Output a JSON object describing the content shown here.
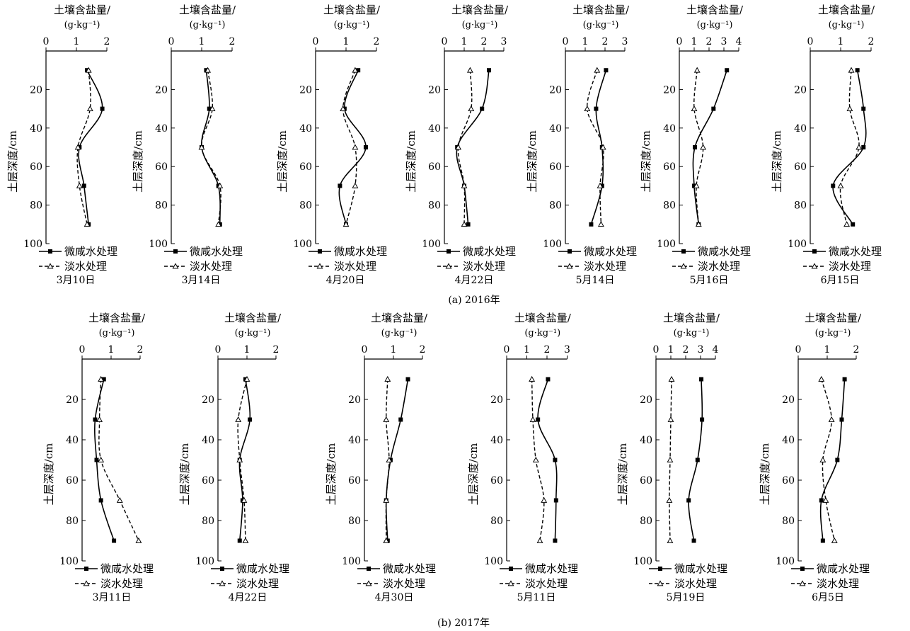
{
  "figure": {
    "caption_a": "(a) 2016年",
    "caption_b": "(b) 2017年",
    "xlabel_line1": "土壤含盐量/",
    "xlabel_line2": "(g·kg⁻¹)",
    "ylabel": "土层深度/cm",
    "legend_saline": "微咸水处理",
    "legend_fresh": "淡水处理"
  },
  "chart_data": [
    {
      "type": "line",
      "group": "2016",
      "title": "3月10日",
      "xlabel": "土壤含盐量/(g·kg⁻¹)",
      "ylabel": "土层深度/cm",
      "xlim": [
        0,
        2
      ],
      "xticks": [
        0,
        1,
        2
      ],
      "ylim": [
        0,
        100
      ],
      "yticks": [
        20,
        40,
        60,
        80,
        100
      ],
      "y": [
        10,
        30,
        50,
        70,
        90
      ],
      "series": [
        {
          "name": "微咸水处理",
          "marker": "square",
          "values": [
            1.35,
            1.85,
            1.1,
            1.25,
            1.4
          ]
        },
        {
          "name": "淡水处理",
          "marker": "triangle",
          "values": [
            1.4,
            1.45,
            1.05,
            1.1,
            1.35
          ]
        }
      ]
    },
    {
      "type": "line",
      "group": "2016",
      "title": "3月14日",
      "xlabel": "土壤含盐量/(g·kg⁻¹)",
      "ylabel": "土层深度/cm",
      "xlim": [
        0,
        2
      ],
      "xticks": [
        0,
        1,
        2
      ],
      "ylim": [
        0,
        100
      ],
      "yticks": [
        20,
        40,
        60,
        80,
        100
      ],
      "y": [
        10,
        30,
        50,
        70,
        90
      ],
      "series": [
        {
          "name": "微咸水处理",
          "marker": "square",
          "values": [
            1.15,
            1.25,
            1.0,
            1.55,
            1.6
          ]
        },
        {
          "name": "淡水处理",
          "marker": "triangle",
          "values": [
            1.2,
            1.35,
            1.0,
            1.6,
            1.55
          ]
        }
      ]
    },
    {
      "type": "line",
      "group": "2016",
      "title": "4月20日",
      "xlabel": "土壤含盐量/(g·kg⁻¹)",
      "ylabel": "土层深度/cm",
      "xlim": [
        0,
        2
      ],
      "xticks": [
        0,
        1,
        2
      ],
      "ylim": [
        0,
        100
      ],
      "yticks": [
        20,
        40,
        60,
        80,
        100
      ],
      "y": [
        10,
        30,
        50,
        70,
        90
      ],
      "series": [
        {
          "name": "微咸水处理",
          "marker": "square",
          "values": [
            1.4,
            0.95,
            1.65,
            0.8,
            1.0
          ]
        },
        {
          "name": "淡水处理",
          "marker": "triangle",
          "values": [
            1.3,
            0.9,
            1.3,
            1.3,
            1.0
          ]
        }
      ]
    },
    {
      "type": "line",
      "group": "2016",
      "title": "4月22日",
      "xlabel": "土壤含盐量/(g·kg⁻¹)",
      "ylabel": "土层深度/cm",
      "xlim": [
        0,
        3
      ],
      "xticks": [
        0,
        1,
        2,
        3
      ],
      "ylim": [
        0,
        100
      ],
      "yticks": [
        20,
        40,
        60,
        80,
        100
      ],
      "y": [
        10,
        30,
        50,
        70,
        90
      ],
      "series": [
        {
          "name": "微咸水处理",
          "marker": "square",
          "values": [
            2.25,
            1.9,
            0.65,
            1.0,
            1.2
          ]
        },
        {
          "name": "淡水处理",
          "marker": "triangle",
          "values": [
            1.3,
            1.35,
            0.7,
            1.0,
            1.0
          ]
        }
      ]
    },
    {
      "type": "line",
      "group": "2016",
      "title": "5月14日",
      "xlabel": "土壤含盐量/(g·kg⁻¹)",
      "ylabel": "土层深度/cm",
      "xlim": [
        0,
        3
      ],
      "xticks": [
        0,
        1,
        2,
        3
      ],
      "ylim": [
        0,
        100
      ],
      "yticks": [
        20,
        40,
        60,
        80,
        100
      ],
      "y": [
        10,
        30,
        50,
        70,
        90
      ],
      "series": [
        {
          "name": "微咸水处理",
          "marker": "square",
          "values": [
            2.05,
            1.55,
            1.85,
            1.85,
            1.3
          ]
        },
        {
          "name": "淡水处理",
          "marker": "triangle",
          "values": [
            1.6,
            1.1,
            1.9,
            1.75,
            1.8
          ]
        }
      ]
    },
    {
      "type": "line",
      "group": "2016",
      "title": "5月16日",
      "xlabel": "土壤含盐量/(g·kg⁻¹)",
      "ylabel": "土层深度/cm",
      "xlim": [
        0,
        4
      ],
      "xticks": [
        0,
        1,
        2,
        3,
        4
      ],
      "ylim": [
        0,
        100
      ],
      "yticks": [
        20,
        40,
        60,
        80,
        100
      ],
      "y": [
        10,
        30,
        50,
        70,
        90
      ],
      "series": [
        {
          "name": "微咸水处理",
          "marker": "square",
          "values": [
            3.2,
            2.3,
            1.05,
            1.0,
            1.3
          ]
        },
        {
          "name": "淡水处理",
          "marker": "triangle",
          "values": [
            1.2,
            1.0,
            1.6,
            1.15,
            1.3
          ]
        }
      ]
    },
    {
      "type": "line",
      "group": "2016",
      "title": "6月15日",
      "xlabel": "土壤含盐量/(g·kg⁻¹)",
      "ylabel": "土层深度/cm",
      "xlim": [
        0,
        2
      ],
      "xticks": [
        0,
        1,
        2
      ],
      "ylim": [
        0,
        100
      ],
      "yticks": [
        20,
        40,
        60,
        80,
        100
      ],
      "y": [
        10,
        30,
        50,
        70,
        90
      ],
      "series": [
        {
          "name": "微咸水处理",
          "marker": "square",
          "values": [
            1.55,
            1.75,
            1.75,
            0.75,
            1.4
          ]
        },
        {
          "name": "淡水处理",
          "marker": "triangle",
          "values": [
            1.35,
            1.3,
            1.6,
            1.0,
            1.2
          ]
        }
      ]
    },
    {
      "type": "line",
      "group": "2017",
      "title": "3月11日",
      "xlabel": "土壤含盐量/(g·kg⁻¹)",
      "ylabel": "土层深度/cm",
      "xlim": [
        0,
        2
      ],
      "xticks": [
        0,
        1,
        2
      ],
      "ylim": [
        0,
        100
      ],
      "yticks": [
        20,
        40,
        60,
        80,
        100
      ],
      "y": [
        10,
        30,
        50,
        70,
        90
      ],
      "series": [
        {
          "name": "微咸水处理",
          "marker": "square",
          "values": [
            0.75,
            0.45,
            0.5,
            0.65,
            1.1
          ]
        },
        {
          "name": "淡水处理",
          "marker": "triangle",
          "values": [
            0.65,
            0.6,
            0.65,
            1.3,
            1.95
          ]
        }
      ]
    },
    {
      "type": "line",
      "group": "2017",
      "title": "4月22日",
      "xlabel": "土壤含盐量/(g·kg⁻¹)",
      "ylabel": "土层深度/cm",
      "xlim": [
        0,
        2
      ],
      "xticks": [
        0,
        1,
        2
      ],
      "ylim": [
        0,
        100
      ],
      "yticks": [
        20,
        40,
        60,
        80,
        100
      ],
      "y": [
        10,
        30,
        50,
        70,
        90
      ],
      "series": [
        {
          "name": "微咸水处理",
          "marker": "square",
          "values": [
            0.95,
            1.1,
            0.75,
            0.85,
            0.75
          ]
        },
        {
          "name": "淡水处理",
          "marker": "triangle",
          "values": [
            1.0,
            0.7,
            0.75,
            0.9,
            0.95
          ]
        }
      ]
    },
    {
      "type": "line",
      "group": "2017",
      "title": "4月30日",
      "xlabel": "土壤含盐量/(g·kg⁻¹)",
      "ylabel": "土层深度/cm",
      "xlim": [
        0,
        2
      ],
      "xticks": [
        0,
        1,
        2
      ],
      "ylim": [
        0,
        100
      ],
      "yticks": [
        20,
        40,
        60,
        80,
        100
      ],
      "y": [
        10,
        30,
        50,
        70,
        90
      ],
      "series": [
        {
          "name": "微咸水处理",
          "marker": "square",
          "values": [
            1.5,
            1.25,
            0.9,
            0.75,
            0.8
          ]
        },
        {
          "name": "淡水处理",
          "marker": "triangle",
          "values": [
            0.8,
            0.75,
            0.85,
            0.75,
            0.75
          ]
        }
      ]
    },
    {
      "type": "line",
      "group": "2017",
      "title": "5月11日",
      "xlabel": "土壤含盐量/(g·kg⁻¹)",
      "ylabel": "土层深度/cm",
      "xlim": [
        0,
        3
      ],
      "xticks": [
        0,
        1,
        2,
        3
      ],
      "ylim": [
        0,
        100
      ],
      "yticks": [
        20,
        40,
        60,
        80,
        100
      ],
      "y": [
        10,
        30,
        50,
        70,
        90
      ],
      "series": [
        {
          "name": "微咸水处理",
          "marker": "square",
          "values": [
            2.05,
            1.55,
            2.4,
            2.45,
            2.4
          ]
        },
        {
          "name": "淡水处理",
          "marker": "triangle",
          "values": [
            1.25,
            1.3,
            1.45,
            1.85,
            1.65
          ]
        }
      ]
    },
    {
      "type": "line",
      "group": "2017",
      "title": "5月19日",
      "xlabel": "土壤含盐量/(g·kg⁻¹)",
      "ylabel": "土层深度/cm",
      "xlim": [
        0,
        4
      ],
      "xticks": [
        0,
        1,
        2,
        3,
        4
      ],
      "ylim": [
        0,
        100
      ],
      "yticks": [
        20,
        40,
        60,
        80,
        100
      ],
      "y": [
        10,
        30,
        50,
        70,
        90
      ],
      "series": [
        {
          "name": "微咸水处理",
          "marker": "square",
          "values": [
            3.05,
            3.1,
            2.8,
            2.2,
            2.55
          ]
        },
        {
          "name": "淡水处理",
          "marker": "triangle",
          "values": [
            1.05,
            1.0,
            0.95,
            0.9,
            0.95
          ]
        }
      ]
    },
    {
      "type": "line",
      "group": "2017",
      "title": "6月5日",
      "xlabel": "土壤含盐量/(g·kg⁻¹)",
      "ylabel": "土层深度/cm",
      "xlim": [
        0,
        2
      ],
      "xticks": [
        0,
        1,
        2
      ],
      "ylim": [
        0,
        100
      ],
      "yticks": [
        20,
        40,
        60,
        80,
        100
      ],
      "y": [
        10,
        30,
        50,
        70,
        90
      ],
      "series": [
        {
          "name": "微咸水处理",
          "marker": "square",
          "values": [
            1.6,
            1.5,
            1.35,
            0.8,
            0.85
          ]
        },
        {
          "name": "淡水处理",
          "marker": "triangle",
          "values": [
            0.8,
            1.15,
            0.85,
            0.95,
            1.25
          ]
        }
      ]
    }
  ]
}
